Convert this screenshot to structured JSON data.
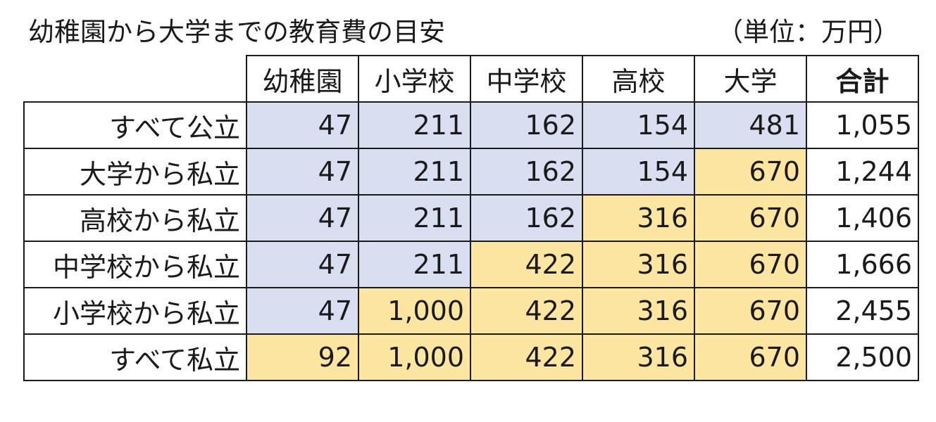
{
  "title": "幼稚園から大学までの教育費の目安",
  "unit": "（単位：万円）",
  "colors": {
    "public": "#d9dff1",
    "private": "#fde6a0"
  },
  "columns": [
    "幼稚園",
    "小学校",
    "中学校",
    "高校",
    "大学",
    "合計"
  ],
  "rows": [
    {
      "label": "すべて公立",
      "values": [
        "47",
        "211",
        "162",
        "154",
        "481"
      ],
      "types": [
        "pub",
        "pub",
        "pub",
        "pub",
        "pub"
      ],
      "total": "1,055"
    },
    {
      "label": "大学から私立",
      "values": [
        "47",
        "211",
        "162",
        "154",
        "670"
      ],
      "types": [
        "pub",
        "pub",
        "pub",
        "pub",
        "pri"
      ],
      "total": "1,244"
    },
    {
      "label": "高校から私立",
      "values": [
        "47",
        "211",
        "162",
        "316",
        "670"
      ],
      "types": [
        "pub",
        "pub",
        "pub",
        "pri",
        "pri"
      ],
      "total": "1,406"
    },
    {
      "label": "中学校から私立",
      "values": [
        "47",
        "211",
        "422",
        "316",
        "670"
      ],
      "types": [
        "pub",
        "pub",
        "pri",
        "pri",
        "pri"
      ],
      "total": "1,666"
    },
    {
      "label": "小学校から私立",
      "values": [
        "47",
        "1,000",
        "422",
        "316",
        "670"
      ],
      "types": [
        "pub",
        "pri",
        "pri",
        "pri",
        "pri"
      ],
      "total": "2,455"
    },
    {
      "label": "すべて私立",
      "values": [
        "92",
        "1,000",
        "422",
        "316",
        "670"
      ],
      "types": [
        "pri",
        "pri",
        "pri",
        "pri",
        "pri"
      ],
      "total": "2,500"
    }
  ]
}
